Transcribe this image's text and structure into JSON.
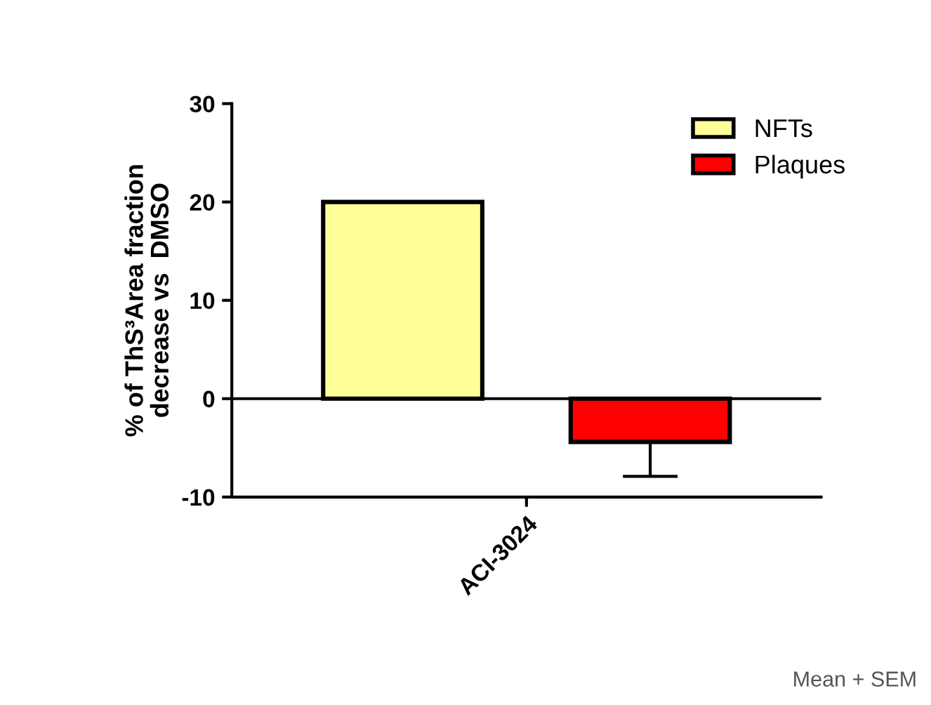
{
  "chart_data": {
    "type": "bar",
    "categories": [
      "ACI-3024"
    ],
    "ylabel": "% of ThS³Area fraction\ndecrease vs  DMSO",
    "series": [
      {
        "name": "NFTs",
        "color": "#ffff99",
        "values": [
          20
        ],
        "errors": [
          null
        ]
      },
      {
        "name": "Plaques",
        "color": "#ff0000",
        "values": [
          -4.4
        ],
        "errors": [
          [
            -7.9,
            -4.4
          ]
        ]
      }
    ],
    "ylim": [
      -10,
      30
    ],
    "yticks": [
      -10,
      0,
      10,
      20,
      30
    ],
    "grid": false,
    "ref_lines": [
      {
        "axis": "y",
        "value": 0
      }
    ],
    "legend": "top right",
    "annotations": [
      "Mean + SEM"
    ]
  }
}
